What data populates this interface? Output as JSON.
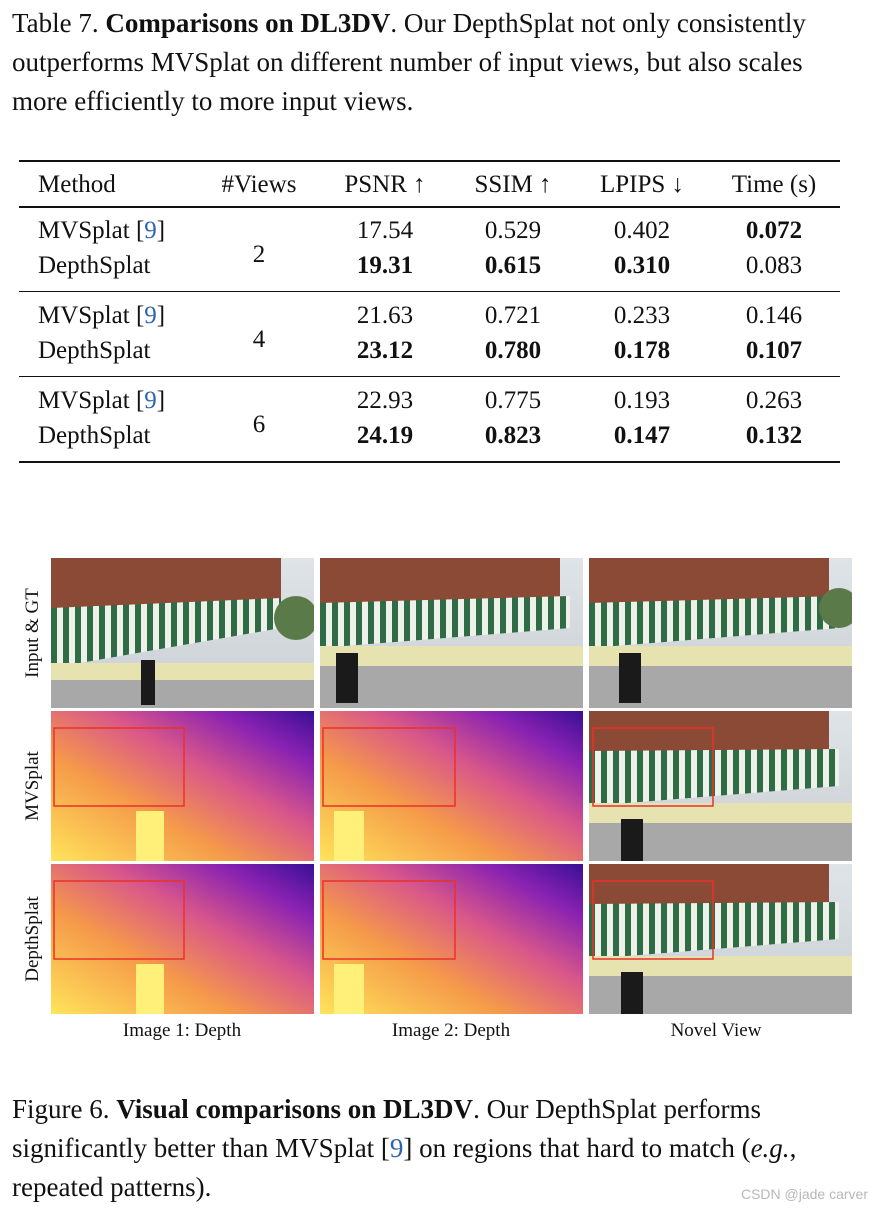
{
  "table_caption": {
    "label": "Table 7.",
    "title": "Comparisons on DL3DV",
    "text": ". Our DepthSplat not only consistently outperforms MVSplat on different number of input views, but also scales more efficiently to more input views."
  },
  "table": {
    "headers": [
      "Method",
      "#Views",
      "PSNR ↑",
      "SSIM ↑",
      "LPIPS ↓",
      "Time (s)"
    ],
    "groups": [
      {
        "views": "2",
        "rows": [
          {
            "method": "MVSplat",
            "ref": "9",
            "psnr": "17.54",
            "ssim": "0.529",
            "lpips": "0.402",
            "time": "0.072"
          },
          {
            "method": "DepthSplat",
            "ref": "",
            "psnr": "19.31",
            "ssim": "0.615",
            "lpips": "0.310",
            "time": "0.083"
          }
        ]
      },
      {
        "views": "4",
        "rows": [
          {
            "method": "MVSplat",
            "ref": "9",
            "psnr": "21.63",
            "ssim": "0.721",
            "lpips": "0.233",
            "time": "0.146"
          },
          {
            "method": "DepthSplat",
            "ref": "",
            "psnr": "23.12",
            "ssim": "0.780",
            "lpips": "0.178",
            "time": "0.107"
          }
        ]
      },
      {
        "views": "6",
        "rows": [
          {
            "method": "MVSplat",
            "ref": "9",
            "psnr": "22.93",
            "ssim": "0.775",
            "lpips": "0.193",
            "time": "0.263"
          },
          {
            "method": "DepthSplat",
            "ref": "",
            "psnr": "24.19",
            "ssim": "0.823",
            "lpips": "0.147",
            "time": "0.132"
          }
        ]
      }
    ]
  },
  "figure": {
    "row_labels": [
      "Input & GT",
      "MVSplat",
      "DepthSplat"
    ],
    "column_labels": [
      "Image 1: Depth",
      "Image 2: Depth",
      "Novel View"
    ]
  },
  "figure_caption": {
    "label": "Figure 6.",
    "title": "Visual comparisons on DL3DV",
    "text_a": ". Our DepthSplat performs significantly better than MVSplat [",
    "ref": "9",
    "text_b": "] on regions that hard to match (",
    "eg": "e.g.",
    "text_c": ", repeated patterns)."
  },
  "watermark": "CSDN @jade carver",
  "colors": {
    "ref_link": "#2f63b0",
    "highlight_box": "#e8322a"
  }
}
